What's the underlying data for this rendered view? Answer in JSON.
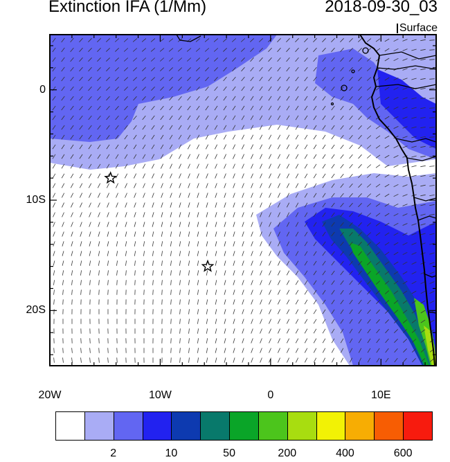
{
  "header": {
    "title": "Extinction IFA (1/Mm)",
    "datetime": "2018-09-30_03",
    "level": "Surface"
  },
  "map": {
    "region": "Southeast Atlantic / Southwest Africa",
    "lon_range": [
      -20,
      15
    ],
    "lat_range": [
      -25,
      5
    ],
    "x_tick_labels": [
      "20W",
      "10W",
      "0",
      "10E"
    ],
    "x_tick_values": [
      -20,
      -10,
      0,
      10
    ],
    "y_tick_labels": [
      "0",
      "10S",
      "20S"
    ],
    "y_tick_values": [
      0,
      -10,
      -20
    ],
    "field_colors": {
      "bin_2_5": "#a9acf5",
      "bin_5_10": "#6266f2",
      "bin_10_50": "#2222f0",
      "bin_50_100": "#0d3ab0",
      "bin_100_200": "#08796b",
      "bin_200_300": "#0aa528",
      "bin_300_400": "#4cc51c",
      "bin_400_500": "#a8dd10"
    },
    "markers": [
      {
        "name": "star-marker-1",
        "lon": -14.5,
        "lat": -8.0,
        "icon": "star-outline-icon"
      },
      {
        "name": "star-marker-2",
        "lon": -5.7,
        "lat": -16.0,
        "icon": "star-outline-icon"
      }
    ],
    "wind_vectors": "dense field of wind barbs over the whole domain; southeasterly trade winds turning to southerly/southwesterly along the African coast"
  },
  "colorbar": {
    "colors": [
      "#ffffff",
      "#a9acf5",
      "#6266f2",
      "#2222f0",
      "#0d3ab0",
      "#08796b",
      "#0aa528",
      "#4cc51c",
      "#a8dd10",
      "#f2f205",
      "#f7ad03",
      "#f75d03",
      "#f71b0e"
    ],
    "labels": [
      {
        "text": "2",
        "after_box": 1
      },
      {
        "text": "10",
        "after_box": 3
      },
      {
        "text": "50",
        "after_box": 5
      },
      {
        "text": "200",
        "after_box": 7
      },
      {
        "text": "400",
        "after_box": 9
      },
      {
        "text": "600",
        "after_box": 11
      }
    ]
  }
}
